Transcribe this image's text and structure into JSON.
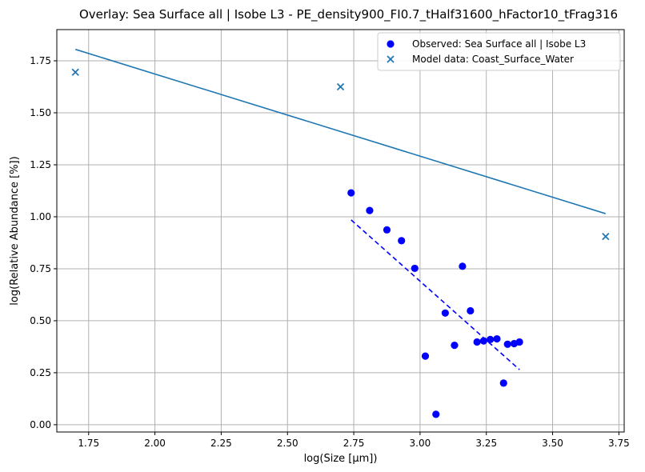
{
  "chart_data": {
    "type": "scatter",
    "title": "Overlay: Sea Surface all | Isobe L3 - PE_density900_FI0.7_tHalf31600_hFactor10_tFrag316",
    "xlabel": "log(Size [µm])",
    "ylabel": "log(Relative Abundance [%])",
    "xlim": [
      1.63,
      3.77
    ],
    "ylim": [
      -0.035,
      1.9
    ],
    "xticks": [
      "1.75",
      "2.00",
      "2.25",
      "2.50",
      "2.75",
      "3.00",
      "3.25",
      "3.50",
      "3.75"
    ],
    "yticks": [
      "0.00",
      "0.25",
      "0.50",
      "0.75",
      "1.00",
      "1.25",
      "1.50",
      "1.75"
    ],
    "grid": true,
    "legend_position": "top-right",
    "colors": {
      "observed": "#0000ff",
      "model": "#1f77b4"
    },
    "series": [
      {
        "name": "Observed: Sea Surface all | Isobe L3",
        "marker": "circle",
        "color": "#0000ff",
        "points": [
          [
            2.74,
            1.115
          ],
          [
            2.81,
            1.03
          ],
          [
            2.875,
            0.937
          ],
          [
            2.93,
            0.885
          ],
          [
            2.98,
            0.752
          ],
          [
            3.02,
            0.33
          ],
          [
            3.06,
            0.05
          ],
          [
            3.095,
            0.537
          ],
          [
            3.13,
            0.382
          ],
          [
            3.16,
            0.762
          ],
          [
            3.19,
            0.548
          ],
          [
            3.215,
            0.398
          ],
          [
            3.24,
            0.403
          ],
          [
            3.265,
            0.41
          ],
          [
            3.29,
            0.413
          ],
          [
            3.315,
            0.2
          ],
          [
            3.33,
            0.387
          ],
          [
            3.355,
            0.39
          ],
          [
            3.375,
            0.398
          ]
        ],
        "fit_line": [
          [
            2.74,
            0.985
          ],
          [
            3.375,
            0.265
          ]
        ]
      },
      {
        "name": "Model data: Coast_Surface_Water",
        "marker": "x",
        "color": "#1f77b4",
        "points": [
          [
            1.7,
            1.695
          ],
          [
            2.7,
            1.625
          ],
          [
            3.7,
            0.905
          ]
        ],
        "fit_line": [
          [
            1.7,
            1.805
          ],
          [
            3.7,
            1.015
          ]
        ]
      }
    ]
  }
}
